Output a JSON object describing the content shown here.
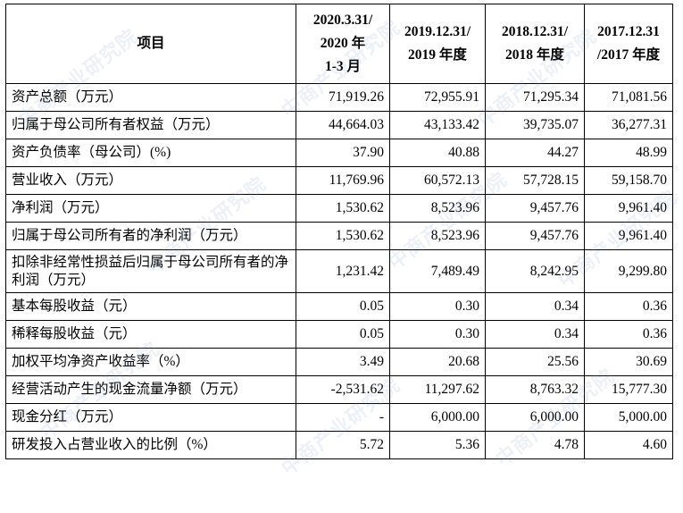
{
  "table": {
    "header": {
      "item": "项目",
      "col1": [
        "2020.3.31/",
        "2020 年",
        "1-3 月"
      ],
      "col2": [
        "2019.12.31/",
        "2019 年度"
      ],
      "col3": [
        "2018.12.31/",
        "2018 年度"
      ],
      "col4": [
        "2017.12.31",
        "/2017 年度"
      ]
    },
    "rows": [
      {
        "label": "资产总额（万元）",
        "v": [
          "71,919.26",
          "72,955.91",
          "71,295.34",
          "71,081.56"
        ]
      },
      {
        "label": "归属于母公司所有者权益（万元）",
        "v": [
          "44,664.03",
          "43,133.42",
          "39,735.07",
          "36,277.31"
        ]
      },
      {
        "label": "资产负债率（母公司）(%)",
        "v": [
          "37.90",
          "40.88",
          "44.27",
          "48.99"
        ]
      },
      {
        "label": "营业收入（万元）",
        "v": [
          "11,769.96",
          "60,572.13",
          "57,728.15",
          "59,158.70"
        ]
      },
      {
        "label": "净利润（万元）",
        "v": [
          "1,530.62",
          "8,523.96",
          "9,457.76",
          "9,961.40"
        ]
      },
      {
        "label": "归属于母公司所有者的净利润（万元）",
        "v": [
          "1,530.62",
          "8,523.96",
          "9,457.76",
          "9,961.40"
        ]
      },
      {
        "label": "扣除非经常性损益后归属于母公司所有者的净利润（万元）",
        "v": [
          "1,231.42",
          "7,489.49",
          "8,242.95",
          "9,299.80"
        ]
      },
      {
        "label": "基本每股收益（元）",
        "v": [
          "0.05",
          "0.30",
          "0.34",
          "0.36"
        ]
      },
      {
        "label": "稀释每股收益（元）",
        "v": [
          "0.05",
          "0.30",
          "0.34",
          "0.36"
        ]
      },
      {
        "label": "加权平均净资产收益率（%）",
        "v": [
          "3.49",
          "20.68",
          "25.56",
          "30.69"
        ]
      },
      {
        "label": "经营活动产生的现金流量净额（万元）",
        "v": [
          "-2,531.62",
          "11,297.62",
          "8,763.32",
          "15,777.30"
        ]
      },
      {
        "label": "现金分红（万元）",
        "v": [
          "-",
          "6,000.00",
          "6,000.00",
          "5,000.00"
        ]
      },
      {
        "label": "研发投入占营业收入的比例（%）",
        "v": [
          "5.72",
          "5.36",
          "4.78",
          "4.60"
        ]
      }
    ]
  },
  "watermark": {
    "text": "中商产业研究院"
  }
}
